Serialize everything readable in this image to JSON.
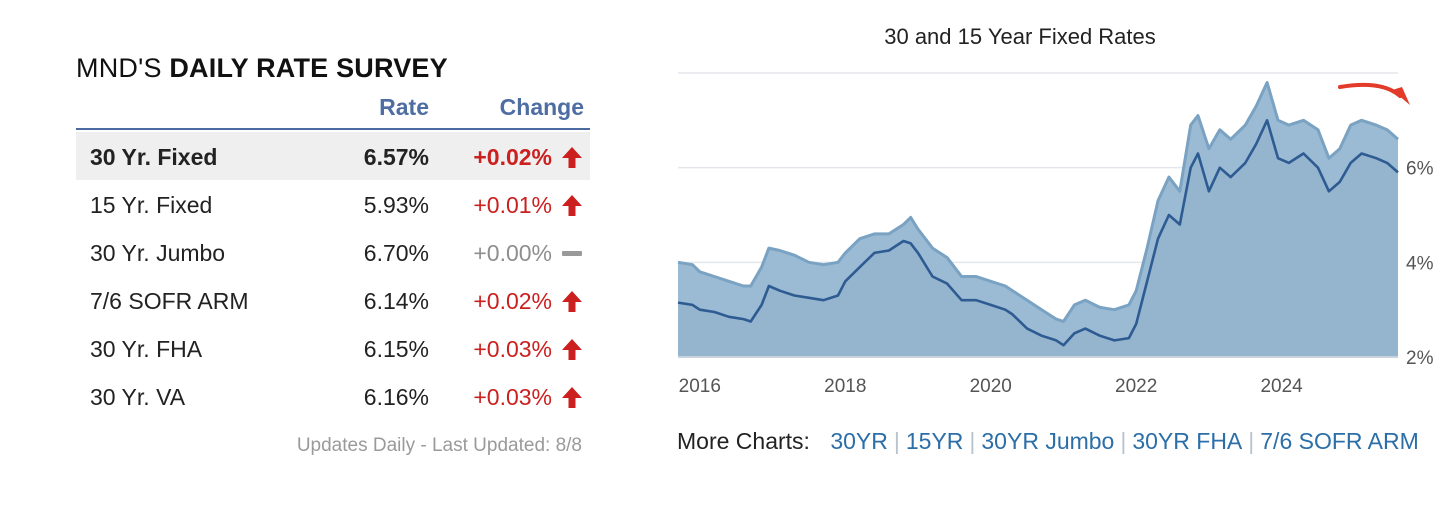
{
  "survey": {
    "title_prefix": "MND'S",
    "title_bold": "DAILY RATE SURVEY",
    "columns": {
      "rate": "Rate",
      "change": "Change"
    },
    "rows": [
      {
        "product": "30 Yr. Fixed",
        "rate": "6.57%",
        "change": "+0.02%",
        "direction": "up",
        "highlight": true
      },
      {
        "product": "15 Yr. Fixed",
        "rate": "5.93%",
        "change": "+0.01%",
        "direction": "up",
        "highlight": false
      },
      {
        "product": "30 Yr. Jumbo",
        "rate": "6.70%",
        "change": "+0.00%",
        "direction": "flat",
        "highlight": false
      },
      {
        "product": "7/6 SOFR ARM",
        "rate": "6.14%",
        "change": "+0.02%",
        "direction": "up",
        "highlight": false
      },
      {
        "product": "30 Yr. FHA",
        "rate": "6.15%",
        "change": "+0.03%",
        "direction": "up",
        "highlight": false
      },
      {
        "product": "30 Yr. VA",
        "rate": "6.16%",
        "change": "+0.03%",
        "direction": "up",
        "highlight": false
      }
    ],
    "updated": "Updates Daily - Last Updated: 8/8",
    "colors": {
      "up": "#cc1f1f",
      "flat": "#8e8e8e",
      "header": "#4d6da3"
    }
  },
  "chart_data": {
    "type": "area",
    "title": "30 and 15 Year Fixed Rates",
    "xlabel": "",
    "ylabel": "",
    "x_ticks": [
      "2016",
      "2018",
      "2020",
      "2022",
      "2024"
    ],
    "y_ticks": [
      "2%",
      "4%",
      "6%"
    ],
    "xlim": [
      2015.7,
      2025.6
    ],
    "ylim": [
      2,
      8
    ],
    "grid": true,
    "legend": "none",
    "series": [
      {
        "color": "#7aa2c2",
        "x": [
          2015.7,
          2015.9,
          2016.0,
          2016.2,
          2016.4,
          2016.6,
          2016.7,
          2016.85,
          2016.95,
          2017.1,
          2017.3,
          2017.5,
          2017.7,
          2017.9,
          2018.0,
          2018.2,
          2018.4,
          2018.6,
          2018.8,
          2018.9,
          2019.0,
          2019.2,
          2019.4,
          2019.6,
          2019.8,
          2020.0,
          2020.2,
          2020.3,
          2020.5,
          2020.7,
          2020.9,
          2021.0,
          2021.15,
          2021.3,
          2021.5,
          2021.7,
          2021.9,
          2022.0,
          2022.15,
          2022.3,
          2022.45,
          2022.6,
          2022.75,
          2022.85,
          2023.0,
          2023.15,
          2023.3,
          2023.5,
          2023.65,
          2023.8,
          2023.95,
          2024.1,
          2024.3,
          2024.5,
          2024.65,
          2024.8,
          2024.95,
          2025.1,
          2025.3,
          2025.45,
          2025.6
        ],
        "values": [
          4.0,
          3.95,
          3.8,
          3.7,
          3.6,
          3.5,
          3.5,
          3.9,
          4.3,
          4.25,
          4.15,
          4.0,
          3.95,
          4.0,
          4.2,
          4.5,
          4.6,
          4.6,
          4.8,
          4.95,
          4.7,
          4.3,
          4.1,
          3.7,
          3.7,
          3.6,
          3.5,
          3.4,
          3.2,
          3.0,
          2.8,
          2.75,
          3.1,
          3.2,
          3.05,
          3.0,
          3.1,
          3.4,
          4.3,
          5.3,
          5.8,
          5.5,
          6.9,
          7.1,
          6.4,
          6.8,
          6.6,
          6.9,
          7.3,
          7.8,
          7.0,
          6.9,
          7.0,
          6.8,
          6.2,
          6.4,
          6.9,
          7.0,
          6.9,
          6.8,
          6.6
        ]
      },
      {
        "color": "#2d5b92",
        "x": [
          2015.7,
          2015.9,
          2016.0,
          2016.2,
          2016.4,
          2016.6,
          2016.7,
          2016.85,
          2016.95,
          2017.1,
          2017.3,
          2017.5,
          2017.7,
          2017.9,
          2018.0,
          2018.2,
          2018.4,
          2018.6,
          2018.8,
          2018.9,
          2019.0,
          2019.2,
          2019.4,
          2019.6,
          2019.8,
          2020.0,
          2020.2,
          2020.3,
          2020.5,
          2020.7,
          2020.9,
          2021.0,
          2021.15,
          2021.3,
          2021.5,
          2021.7,
          2021.9,
          2022.0,
          2022.15,
          2022.3,
          2022.45,
          2022.6,
          2022.75,
          2022.85,
          2023.0,
          2023.15,
          2023.3,
          2023.5,
          2023.65,
          2023.8,
          2023.95,
          2024.1,
          2024.3,
          2024.5,
          2024.65,
          2024.8,
          2024.95,
          2025.1,
          2025.3,
          2025.45,
          2025.6
        ],
        "values": [
          3.15,
          3.1,
          3.0,
          2.95,
          2.85,
          2.8,
          2.75,
          3.1,
          3.5,
          3.4,
          3.3,
          3.25,
          3.2,
          3.3,
          3.6,
          3.9,
          4.2,
          4.25,
          4.45,
          4.4,
          4.2,
          3.7,
          3.55,
          3.2,
          3.2,
          3.1,
          3.0,
          2.9,
          2.6,
          2.45,
          2.35,
          2.25,
          2.5,
          2.6,
          2.45,
          2.35,
          2.4,
          2.7,
          3.6,
          4.5,
          5.0,
          4.8,
          6.0,
          6.3,
          5.5,
          6.0,
          5.8,
          6.1,
          6.5,
          7.0,
          6.2,
          6.1,
          6.3,
          6.0,
          5.5,
          5.7,
          6.1,
          6.3,
          6.2,
          6.1,
          5.9
        ]
      }
    ]
  },
  "more_charts": {
    "label": "More Charts:",
    "links": [
      "30YR",
      "15YR",
      "30YR Jumbo",
      "30YR FHA",
      "7/6 SOFR ARM"
    ],
    "link_color": "#2b6ea8"
  }
}
